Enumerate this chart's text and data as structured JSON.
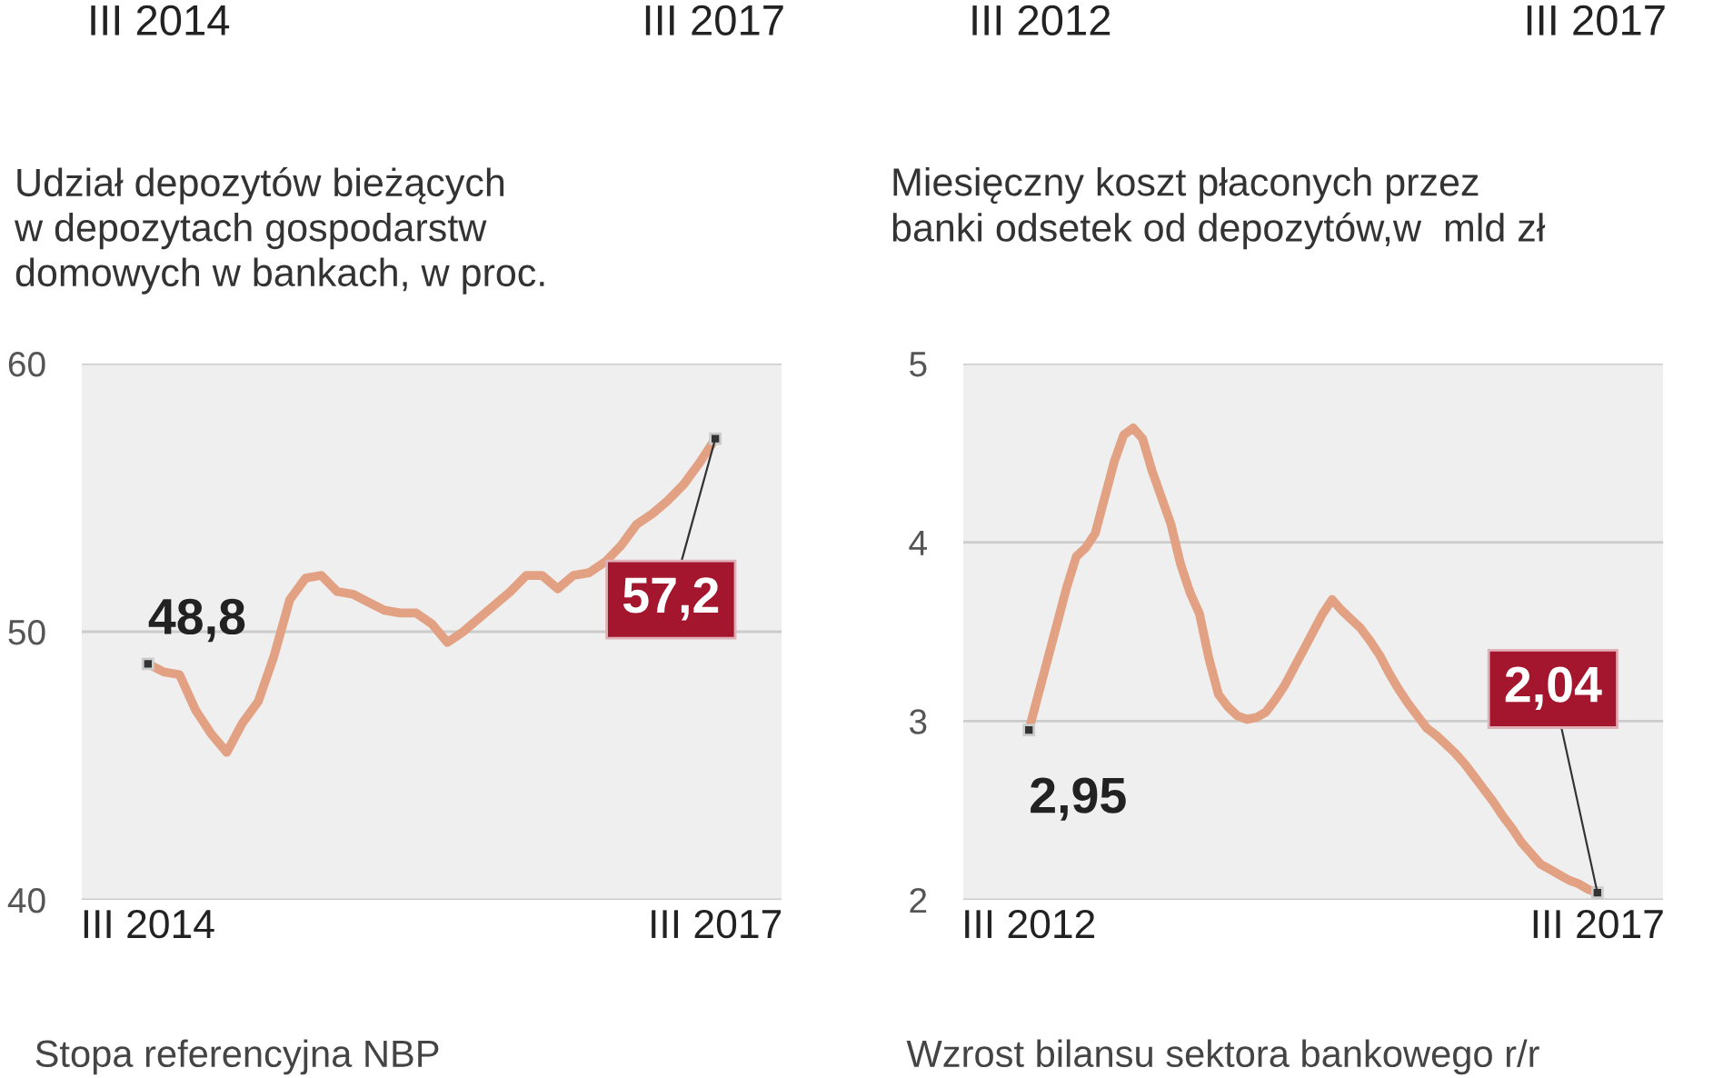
{
  "chart_data": [
    {
      "type": "other",
      "annotations": [
        "III 2014",
        "III 2017"
      ]
    },
    {
      "type": "other",
      "annotations": [
        "III 2012",
        "III 2017"
      ]
    },
    {
      "type": "line",
      "title": "Udział depozytów bieżących\nw depozytach gospodarstw\ndomowych w bankach, w proc.",
      "categories": [
        "III 2014",
        null,
        null,
        null,
        null,
        null,
        null,
        null,
        null,
        null,
        null,
        null,
        null,
        null,
        null,
        null,
        null,
        null,
        null,
        null,
        null,
        null,
        null,
        null,
        null,
        null,
        null,
        null,
        null,
        null,
        null,
        null,
        null,
        null,
        null,
        null,
        "III 2017"
      ],
      "series": [
        {
          "color": "#e3a184",
          "values": [
            48.8,
            48.5,
            48.4,
            47.1,
            46.2,
            45.5,
            46.6,
            47.4,
            49.1,
            51.2,
            52.0,
            52.1,
            51.5,
            51.4,
            51.1,
            50.8,
            50.7,
            50.7,
            50.3,
            49.6,
            50.0,
            50.5,
            51.0,
            51.5,
            52.1,
            52.1,
            51.6,
            52.1,
            52.2,
            52.6,
            53.2,
            54.0,
            54.4,
            54.9,
            55.5,
            56.3,
            57.2
          ],
          "value_labels": [
            "48,8",
            null,
            null,
            null,
            null,
            null,
            null,
            null,
            null,
            null,
            null,
            null,
            null,
            null,
            null,
            null,
            null,
            null,
            null,
            null,
            null,
            null,
            null,
            null,
            null,
            null,
            null,
            null,
            null,
            null,
            null,
            null,
            null,
            null,
            null,
            null,
            "57,2"
          ]
        }
      ],
      "ylim": [
        40,
        60
      ],
      "yticks": [
        40,
        50,
        60
      ],
      "grid": "y"
    },
    {
      "type": "line",
      "title": "Miesięczny koszt płaconych przez\nbanki odsetek od depozytów,w  mld zł",
      "categories": [
        "III 2012",
        null,
        null,
        null,
        null,
        null,
        null,
        null,
        null,
        null,
        null,
        null,
        null,
        null,
        null,
        null,
        null,
        null,
        null,
        null,
        null,
        null,
        null,
        null,
        null,
        null,
        null,
        null,
        null,
        null,
        null,
        null,
        null,
        null,
        null,
        null,
        null,
        null,
        null,
        null,
        null,
        null,
        null,
        null,
        null,
        null,
        null,
        null,
        null,
        null,
        null,
        null,
        null,
        null,
        null,
        null,
        null,
        null,
        null,
        null,
        "III 2017"
      ],
      "series": [
        {
          "color": "#e3a184",
          "values": [
            2.95,
            3.15,
            3.35,
            3.55,
            3.75,
            3.92,
            3.97,
            4.05,
            4.25,
            4.45,
            4.6,
            4.64,
            4.58,
            4.4,
            4.25,
            4.1,
            3.88,
            3.72,
            3.6,
            3.35,
            3.15,
            3.08,
            3.03,
            3.01,
            3.02,
            3.05,
            3.12,
            3.2,
            3.3,
            3.4,
            3.5,
            3.6,
            3.68,
            3.62,
            3.57,
            3.52,
            3.45,
            3.37,
            3.27,
            3.18,
            3.1,
            3.03,
            2.96,
            2.92,
            2.87,
            2.82,
            2.76,
            2.69,
            2.62,
            2.55,
            2.47,
            2.4,
            2.32,
            2.26,
            2.2,
            2.17,
            2.14,
            2.11,
            2.09,
            2.06,
            2.04
          ],
          "value_labels": [
            "2,95",
            null,
            null,
            null,
            null,
            null,
            null,
            null,
            null,
            null,
            null,
            null,
            null,
            null,
            null,
            null,
            null,
            null,
            null,
            null,
            null,
            null,
            null,
            null,
            null,
            null,
            null,
            null,
            null,
            null,
            null,
            null,
            null,
            null,
            null,
            null,
            null,
            null,
            null,
            null,
            null,
            null,
            null,
            null,
            null,
            null,
            null,
            null,
            null,
            null,
            null,
            null,
            null,
            null,
            null,
            null,
            null,
            null,
            null,
            null,
            "2,04"
          ]
        }
      ],
      "ylim": [
        2,
        5
      ],
      "yticks": [
        2,
        3,
        4,
        5
      ],
      "grid": "y"
    },
    {
      "type": "other",
      "title": "Stopa referencyjna NBP"
    },
    {
      "type": "other",
      "title": "Wzrost bilansu sektora bankowego r/r"
    }
  ]
}
